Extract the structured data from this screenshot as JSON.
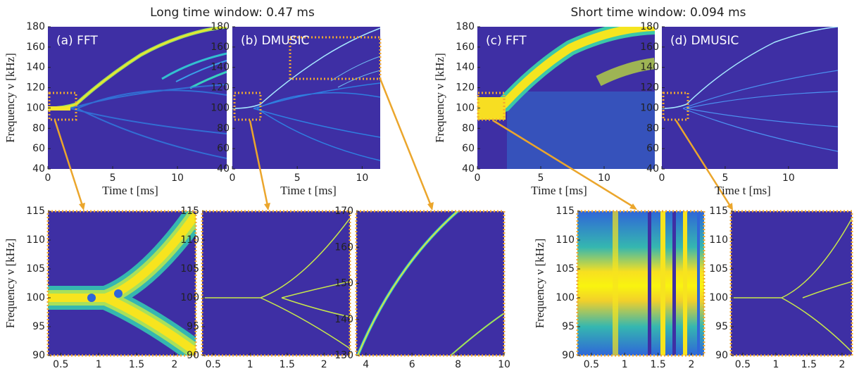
{
  "titles": [
    "Long time window: 0.47 ms",
    "Short time window: 0.094 ms"
  ],
  "chart_data": [
    {
      "type": "heatmap",
      "title": "(a) FFT",
      "xlabel": "Time t [ms]",
      "ylabel": "Frequency ν [kHz]",
      "xlim": [
        0,
        13.8
      ],
      "ylim": [
        40,
        180
      ],
      "xticks": [
        0,
        5,
        10
      ],
      "yticks": [
        40,
        60,
        80,
        100,
        120,
        140,
        160,
        180
      ]
    },
    {
      "type": "heatmap",
      "title": "(b) DMUSIC",
      "xlabel": "Time t [ms]",
      "xlim": [
        0,
        12.8
      ],
      "ylim": [
        40,
        180
      ],
      "xticks": [
        0,
        5,
        10
      ],
      "yticks": [
        40,
        60,
        80,
        100,
        120,
        140,
        160,
        180
      ]
    },
    {
      "type": "heatmap",
      "title": "(c) FFT",
      "xlabel": "Time t [ms]",
      "ylabel": "Frequency ν [kHz]",
      "xlim": [
        0,
        14
      ],
      "ylim": [
        40,
        180
      ],
      "xticks": [
        0,
        5,
        10
      ],
      "yticks": [
        40,
        60,
        80,
        100,
        120,
        140,
        160,
        180
      ]
    },
    {
      "type": "heatmap",
      "title": "(d) DMUSIC",
      "xlabel": "Time t [ms]",
      "xlim": [
        0,
        13.9
      ],
      "ylim": [
        40,
        180
      ],
      "xticks": [
        0,
        5,
        10
      ],
      "yticks": [
        40,
        60,
        80,
        100,
        120,
        140,
        160,
        180
      ]
    },
    {
      "type": "heatmap",
      "ylabel": "Frequency ν [kHz]",
      "xlim": [
        0.33,
        2.28
      ],
      "ylim": [
        90,
        115
      ],
      "xticks": [
        0.5,
        1,
        1.5,
        2
      ],
      "yticks": [
        90,
        95,
        100,
        105,
        110,
        115
      ]
    },
    {
      "type": "heatmap",
      "xlim": [
        0.35,
        2.35
      ],
      "ylim": [
        90,
        115
      ],
      "xticks": [
        0.5,
        1,
        1.5,
        2
      ],
      "yticks": [
        90,
        95,
        100,
        105,
        110,
        115
      ]
    },
    {
      "type": "heatmap",
      "xlim": [
        3.58,
        10
      ],
      "ylim": [
        130,
        170
      ],
      "xticks": [
        4,
        6,
        8,
        10
      ],
      "yticks": [
        130,
        140,
        150,
        160,
        170
      ]
    },
    {
      "type": "heatmap",
      "ylabel": "Frequency ν [kHz]",
      "xlim": [
        0.29,
        2.19
      ],
      "ylim": [
        90,
        115
      ],
      "xticks": [
        0.5,
        1,
        1.5,
        2
      ],
      "yticks": [
        90,
        95,
        100,
        105,
        110,
        115
      ]
    },
    {
      "type": "heatmap",
      "xlim": [
        0.32,
        2.15
      ],
      "ylim": [
        90,
        115
      ],
      "xticks": [
        0.5,
        1,
        1.5,
        2
      ],
      "yticks": [
        90,
        95,
        100,
        105,
        110,
        115
      ]
    }
  ]
}
